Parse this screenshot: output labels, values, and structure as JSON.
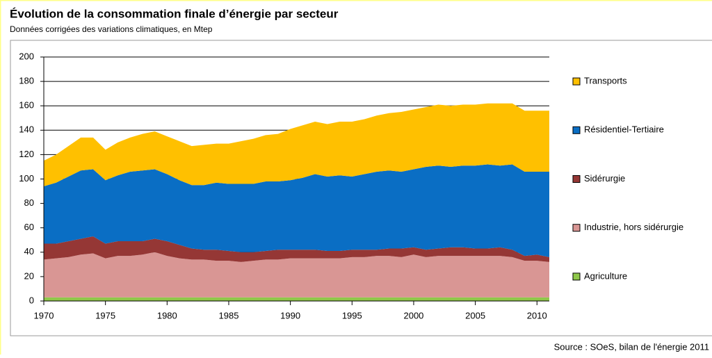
{
  "chart_data": {
    "type": "stacked-area",
    "title": "Évolution de la consommation finale d’énergie par secteur",
    "subtitle": "Données corrigées des variations climatiques, en Mtep",
    "source": "Source : SOeS, bilan de l'énergie 2011",
    "x": [
      1970,
      1971,
      1972,
      1973,
      1974,
      1975,
      1976,
      1977,
      1978,
      1979,
      1980,
      1981,
      1982,
      1983,
      1984,
      1985,
      1986,
      1987,
      1988,
      1989,
      1990,
      1991,
      1992,
      1993,
      1994,
      1995,
      1996,
      1997,
      1998,
      1999,
      2000,
      2001,
      2002,
      2003,
      2004,
      2005,
      2006,
      2007,
      2008,
      2009,
      2010,
      2011
    ],
    "series": [
      {
        "name": "Agriculture",
        "color": "#8fc84a",
        "values": [
          3,
          3,
          3,
          3,
          3,
          3,
          3,
          3,
          3,
          3,
          3,
          3,
          3,
          3,
          3,
          3,
          3,
          3,
          3,
          3,
          3,
          3,
          3,
          3,
          3,
          3,
          3,
          3,
          3,
          3,
          3,
          3,
          3,
          3,
          3,
          3,
          3,
          3,
          3,
          3,
          3,
          3
        ]
      },
      {
        "name": "Industrie, hors sidérurgie",
        "color": "#d99694",
        "values": [
          31,
          32,
          33,
          35,
          36,
          32,
          34,
          34,
          35,
          37,
          34,
          32,
          31,
          31,
          30,
          30,
          29,
          30,
          31,
          31,
          32,
          32,
          32,
          32,
          32,
          33,
          33,
          34,
          34,
          33,
          35,
          33,
          34,
          34,
          34,
          34,
          34,
          34,
          33,
          30,
          30,
          29
        ]
      },
      {
        "name": "Sidérurgie",
        "color": "#953735",
        "values": [
          13,
          12,
          13,
          13,
          14,
          12,
          12,
          12,
          11,
          11,
          12,
          11,
          9,
          8,
          9,
          8,
          8,
          7,
          7,
          8,
          7,
          7,
          7,
          6,
          6,
          6,
          6,
          5,
          6,
          7,
          6,
          6,
          6,
          7,
          7,
          6,
          6,
          7,
          6,
          4,
          5,
          4
        ]
      },
      {
        "name": "Résidentiel-Tertiaire",
        "color": "#0a6ec4",
        "values": [
          47,
          50,
          53,
          56,
          55,
          52,
          54,
          57,
          58,
          57,
          55,
          53,
          52,
          53,
          55,
          55,
          56,
          56,
          57,
          56,
          57,
          59,
          62,
          61,
          62,
          60,
          62,
          64,
          64,
          63,
          64,
          68,
          68,
          66,
          67,
          68,
          69,
          67,
          70,
          69,
          68,
          70
        ]
      },
      {
        "name": "Transports",
        "color": "#ffc000",
        "values": [
          21,
          23,
          25,
          27,
          26,
          25,
          27,
          28,
          30,
          31,
          31,
          32,
          32,
          33,
          32,
          33,
          35,
          37,
          38,
          39,
          42,
          43,
          43,
          43,
          44,
          45,
          45,
          46,
          47,
          49,
          49,
          49,
          50,
          50,
          50,
          50,
          50,
          51,
          50,
          50,
          50,
          50
        ]
      }
    ],
    "xlim": [
      1970,
      2011
    ],
    "xticks": [
      1970,
      1975,
      1980,
      1985,
      1990,
      1995,
      2000,
      2005,
      2010
    ],
    "ylim": [
      0,
      200
    ],
    "yticks": [
      0,
      20,
      40,
      60,
      80,
      100,
      120,
      140,
      160,
      180,
      200
    ],
    "grid": true,
    "legend": "right"
  }
}
